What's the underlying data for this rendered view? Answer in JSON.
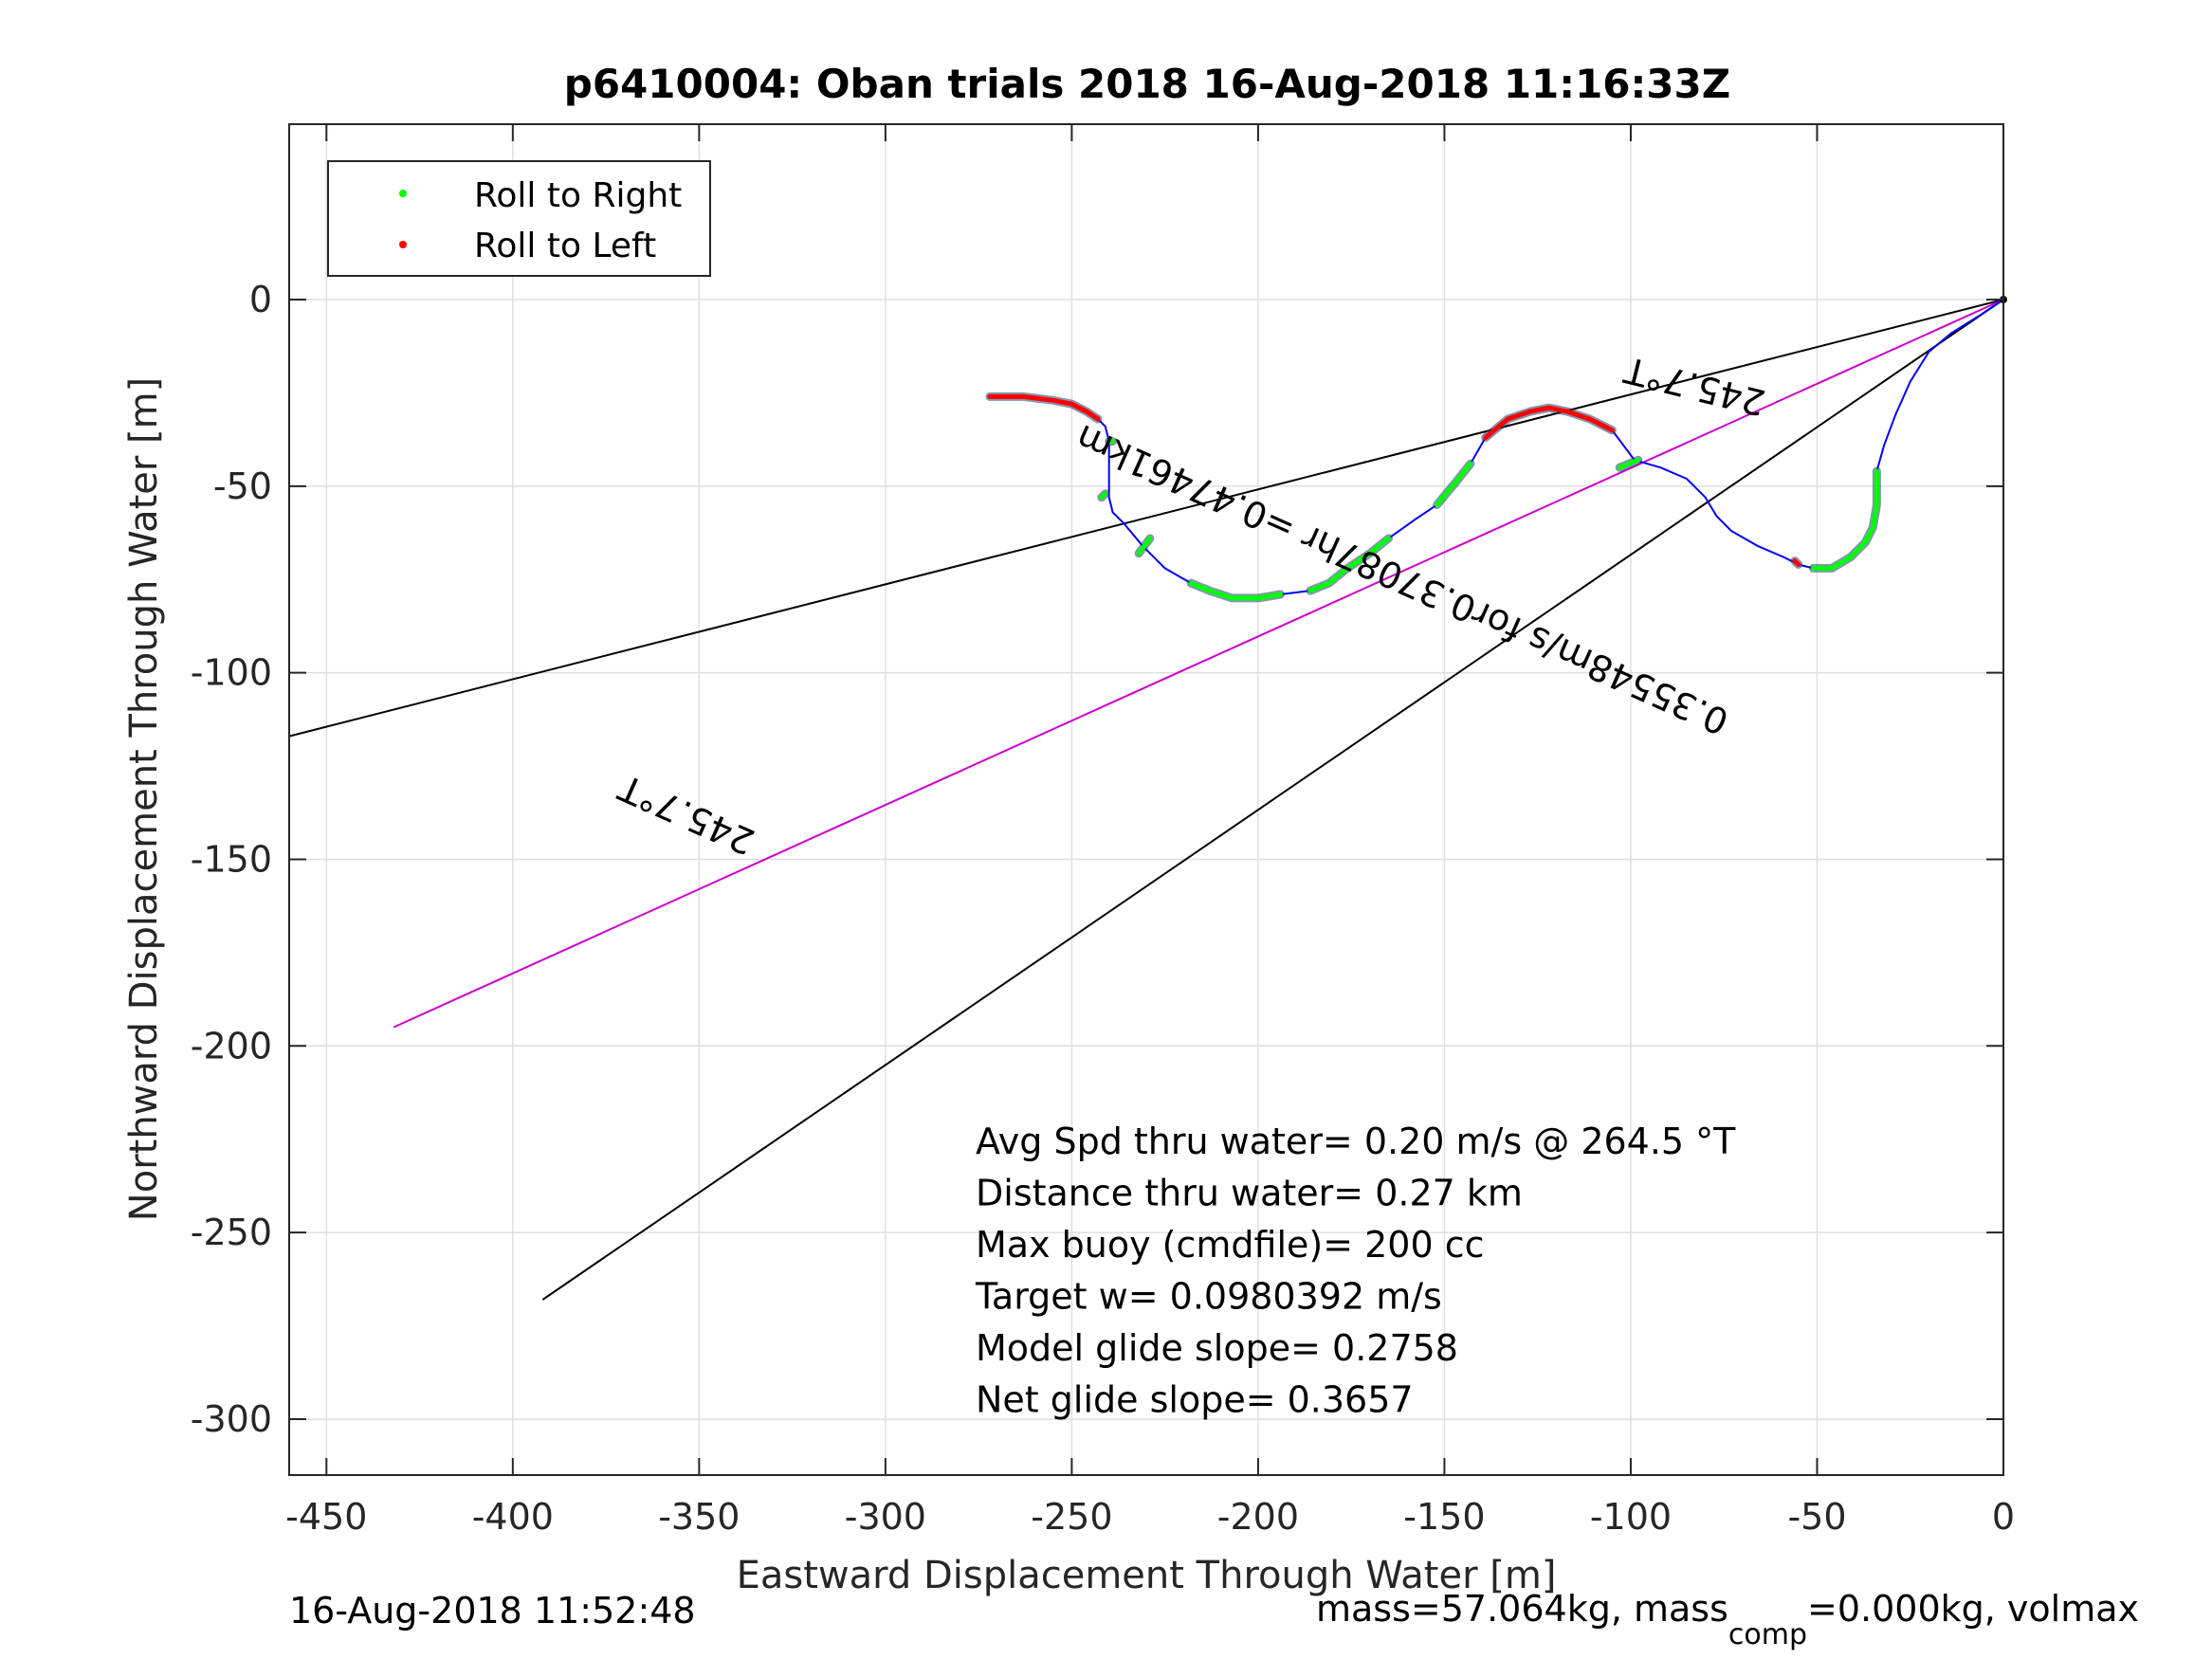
{
  "chart_data": {
    "type": "line",
    "title": "p6410004: Oban trials 2018 16-Aug-2018 11:16:33Z",
    "xlabel": "Eastward Displacement Through Water [m]",
    "ylabel": "Northward Displacement Through Water [m]",
    "xlim": [
      -460,
      0
    ],
    "ylim": [
      -315,
      47
    ],
    "xticks": [
      -450,
      -400,
      -350,
      -300,
      -250,
      -200,
      -150,
      -100,
      -50,
      0
    ],
    "yticks": [
      0,
      -50,
      -100,
      -150,
      -200,
      -250,
      -300
    ],
    "grid": true,
    "legend": {
      "position": "top-left",
      "entries": [
        {
          "label": "Roll to Right",
          "color": "#00ff00"
        },
        {
          "label": "Roll to Left",
          "color": "#ff0000"
        }
      ]
    },
    "track": {
      "color": "#0000ff",
      "points": [
        [
          0,
          0
        ],
        [
          -6,
          -4
        ],
        [
          -14,
          -9
        ],
        [
          -20,
          -14
        ],
        [
          -25,
          -22
        ],
        [
          -29,
          -31
        ],
        [
          -32,
          -39
        ],
        [
          -34,
          -46
        ],
        [
          -34,
          -55
        ],
        [
          -35,
          -61
        ],
        [
          -37,
          -65
        ],
        [
          -41,
          -69
        ],
        [
          -46,
          -72
        ],
        [
          -51,
          -72
        ],
        [
          -55,
          -71
        ],
        [
          -59,
          -69
        ],
        [
          -66,
          -66
        ],
        [
          -73,
          -62
        ],
        [
          -77,
          -58
        ],
        [
          -80,
          -53
        ],
        [
          -85,
          -48
        ],
        [
          -92,
          -45
        ],
        [
          -99,
          -43
        ],
        [
          -105,
          -35
        ],
        [
          -111,
          -32
        ],
        [
          -117,
          -30
        ],
        [
          -122,
          -29
        ],
        [
          -127,
          -30
        ],
        [
          -133,
          -32
        ],
        [
          -139,
          -37
        ],
        [
          -143,
          -44
        ],
        [
          -147,
          -49
        ],
        [
          -152,
          -55
        ],
        [
          -158,
          -59
        ],
        [
          -165,
          -64
        ],
        [
          -170,
          -68
        ],
        [
          -176,
          -72
        ],
        [
          -181,
          -76
        ],
        [
          -186,
          -78
        ],
        [
          -194,
          -79
        ],
        [
          -200,
          -80
        ],
        [
          -207,
          -80
        ],
        [
          -213,
          -78
        ],
        [
          -218,
          -76
        ],
        [
          -225,
          -72
        ],
        [
          -231,
          -66
        ],
        [
          -236,
          -60
        ],
        [
          -239,
          -57
        ],
        [
          -240,
          -53
        ],
        [
          -240,
          -46
        ],
        [
          -240,
          -38
        ],
        [
          -241,
          -34
        ],
        [
          -243,
          -32
        ],
        [
          -246,
          -30
        ],
        [
          -250,
          -28
        ],
        [
          -255,
          -27
        ],
        [
          -263,
          -26
        ],
        [
          -272,
          -26
        ]
      ]
    },
    "right_roll_segments": [
      [
        [
          -34,
          -46
        ],
        [
          -34,
          -55
        ],
        [
          -35,
          -61
        ],
        [
          -37,
          -65
        ],
        [
          -41,
          -69
        ],
        [
          -46,
          -72
        ],
        [
          -51,
          -72
        ]
      ],
      [
        [
          -98,
          -43
        ],
        [
          -103,
          -45
        ]
      ],
      [
        [
          -143,
          -44
        ],
        [
          -147,
          -49
        ],
        [
          -152,
          -55
        ]
      ],
      [
        [
          -165,
          -64
        ],
        [
          -170,
          -68
        ],
        [
          -176,
          -72
        ],
        [
          -181,
          -76
        ],
        [
          -186,
          -78
        ]
      ],
      [
        [
          -194,
          -79
        ],
        [
          -200,
          -80
        ],
        [
          -207,
          -80
        ],
        [
          -213,
          -78
        ],
        [
          -218,
          -76
        ]
      ],
      [
        [
          -229,
          -64
        ],
        [
          -232,
          -68
        ]
      ],
      [
        [
          -239,
          -38
        ],
        [
          -240,
          -38
        ]
      ],
      [
        [
          -241,
          -52
        ],
        [
          -242,
          -53
        ]
      ]
    ],
    "left_roll_segments": [
      [
        [
          -55,
          -71
        ],
        [
          -56,
          -70
        ]
      ],
      [
        [
          -105,
          -35
        ],
        [
          -111,
          -32
        ],
        [
          -117,
          -30
        ],
        [
          -122,
          -29
        ],
        [
          -127,
          -30
        ],
        [
          -133,
          -32
        ],
        [
          -139,
          -37
        ]
      ],
      [
        [
          -243,
          -32
        ],
        [
          -246,
          -30
        ],
        [
          -250,
          -28
        ],
        [
          -255,
          -27
        ],
        [
          -263,
          -26
        ],
        [
          -272,
          -26
        ]
      ]
    ],
    "heading_lines": [
      {
        "color": "#000000",
        "points": [
          [
            0,
            0
          ],
          [
            -460,
            -117
          ]
        ]
      },
      {
        "color": "#cc00cc",
        "points": [
          [
            0,
            0
          ],
          [
            -432,
            -195
          ]
        ]
      },
      {
        "color": "#000000",
        "points": [
          [
            0,
            0
          ],
          [
            -392,
            -268
          ]
        ]
      }
    ],
    "annotations": [
      {
        "text": "245.7°T",
        "x": -82,
        "y": -20,
        "rotation": 194
      },
      {
        "text": "0.35548m/s for0.37087hr =0.47461km",
        "x": -160,
        "y": -72,
        "rotation": 204
      },
      {
        "text": "245.7°T",
        "x": -352,
        "y": -135,
        "rotation": 204
      }
    ],
    "stats": [
      "Avg Spd thru water=  0.20 m/s @ 264.5 °T",
      "Distance thru water=  0.27 km",
      "Max buoy (cmdfile)= 200 cc",
      "Target w= 0.0980392 m/s",
      "Model glide slope= 0.2758",
      "Net glide slope= 0.3657"
    ]
  },
  "footer": {
    "timestamp": "16-Aug-2018 11:52:48",
    "mass_prefix": "mass=57.064kg, mass",
    "mass_sub": "comp",
    "mass_suffix": "=0.000kg, volmax"
  }
}
